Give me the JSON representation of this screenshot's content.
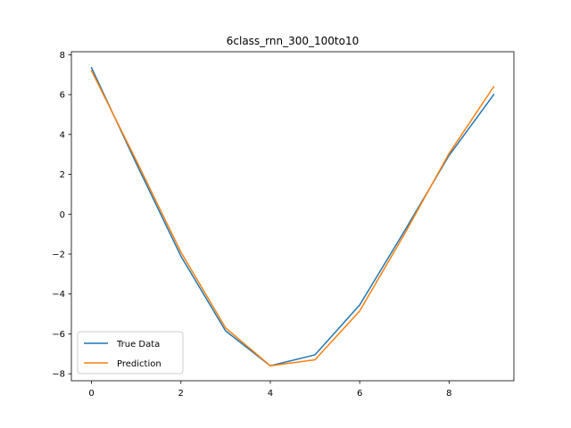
{
  "chart_data": {
    "type": "line",
    "title": "6class_rnn_300_100to10",
    "xlabel": "",
    "ylabel": "",
    "xlim": [
      -0.45,
      9.45
    ],
    "ylim": [
      -8.35,
      8.15
    ],
    "x_ticks": [
      0,
      2,
      4,
      6,
      8
    ],
    "y_ticks": [
      -8,
      -6,
      -4,
      -2,
      0,
      2,
      4,
      6,
      8
    ],
    "x_tick_labels": [
      "0",
      "2",
      "4",
      "6",
      "8"
    ],
    "y_tick_labels": [
      "−8",
      "−6",
      "−4",
      "−2",
      "0",
      "2",
      "4",
      "6",
      "8"
    ],
    "grid": false,
    "legend_position": "lower-left",
    "x": [
      0,
      1,
      2,
      3,
      4,
      5,
      6,
      7,
      8,
      9
    ],
    "series": [
      {
        "name": "True Data",
        "color": "#1f77b4",
        "values": [
          7.35,
          2.55,
          -2.1,
          -5.85,
          -7.6,
          -7.05,
          -4.55,
          -0.85,
          2.95,
          6.0
        ]
      },
      {
        "name": "Prediction",
        "color": "#ff7f0e",
        "values": [
          7.2,
          2.7,
          -1.9,
          -5.7,
          -7.6,
          -7.3,
          -4.85,
          -1.0,
          3.05,
          6.4
        ]
      }
    ]
  }
}
